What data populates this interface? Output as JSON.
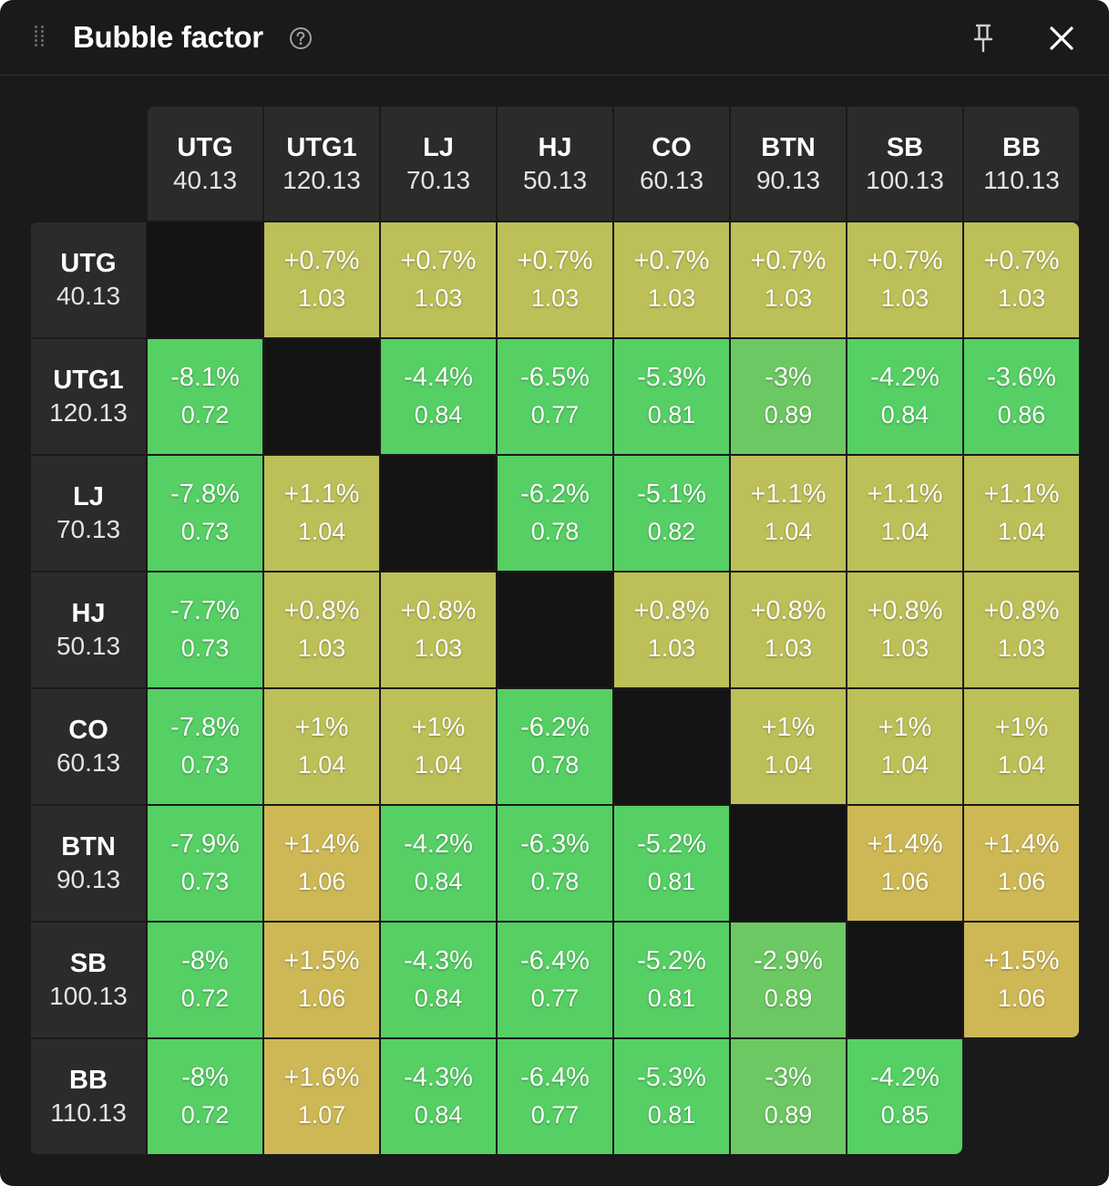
{
  "window": {
    "title": "Bubble factor"
  },
  "icons": {
    "drag": "drag-handle-icon",
    "help": "help-icon",
    "pin": "pin-icon",
    "close": "close-icon"
  },
  "colors": {
    "green": "#56cf64",
    "green_mid": "#6cc862",
    "yellow": "#bdbf58",
    "yellow_dark": "#cdb855",
    "header_bg": "#2b2b2b",
    "panel_bg": "#1a1a1a"
  },
  "players": [
    {
      "pos": "UTG",
      "stack": "40.13"
    },
    {
      "pos": "UTG1",
      "stack": "120.13"
    },
    {
      "pos": "LJ",
      "stack": "70.13"
    },
    {
      "pos": "HJ",
      "stack": "50.13"
    },
    {
      "pos": "CO",
      "stack": "60.13"
    },
    {
      "pos": "BTN",
      "stack": "90.13"
    },
    {
      "pos": "SB",
      "stack": "100.13"
    },
    {
      "pos": "BB",
      "stack": "110.13"
    }
  ],
  "matrix": [
    [
      null,
      {
        "pct": "+0.7%",
        "factor": "1.03",
        "color": "#bdbf58"
      },
      {
        "pct": "+0.7%",
        "factor": "1.03",
        "color": "#bdbf58"
      },
      {
        "pct": "+0.7%",
        "factor": "1.03",
        "color": "#bdbf58"
      },
      {
        "pct": "+0.7%",
        "factor": "1.03",
        "color": "#bdbf58"
      },
      {
        "pct": "+0.7%",
        "factor": "1.03",
        "color": "#bdbf58"
      },
      {
        "pct": "+0.7%",
        "factor": "1.03",
        "color": "#bdbf58"
      },
      {
        "pct": "+0.7%",
        "factor": "1.03",
        "color": "#bdbf58"
      }
    ],
    [
      {
        "pct": "-8.1%",
        "factor": "0.72",
        "color": "#56cf64"
      },
      null,
      {
        "pct": "-4.4%",
        "factor": "0.84",
        "color": "#56cf64"
      },
      {
        "pct": "-6.5%",
        "factor": "0.77",
        "color": "#56cf64"
      },
      {
        "pct": "-5.3%",
        "factor": "0.81",
        "color": "#56cf64"
      },
      {
        "pct": "-3%",
        "factor": "0.89",
        "color": "#6cc862"
      },
      {
        "pct": "-4.2%",
        "factor": "0.84",
        "color": "#56cf64"
      },
      {
        "pct": "-3.6%",
        "factor": "0.86",
        "color": "#56cf64"
      }
    ],
    [
      {
        "pct": "-7.8%",
        "factor": "0.73",
        "color": "#56cf64"
      },
      {
        "pct": "+1.1%",
        "factor": "1.04",
        "color": "#bdbf58"
      },
      null,
      {
        "pct": "-6.2%",
        "factor": "0.78",
        "color": "#56cf64"
      },
      {
        "pct": "-5.1%",
        "factor": "0.82",
        "color": "#56cf64"
      },
      {
        "pct": "+1.1%",
        "factor": "1.04",
        "color": "#bdbf58"
      },
      {
        "pct": "+1.1%",
        "factor": "1.04",
        "color": "#bdbf58"
      },
      {
        "pct": "+1.1%",
        "factor": "1.04",
        "color": "#bdbf58"
      }
    ],
    [
      {
        "pct": "-7.7%",
        "factor": "0.73",
        "color": "#56cf64"
      },
      {
        "pct": "+0.8%",
        "factor": "1.03",
        "color": "#bdbf58"
      },
      {
        "pct": "+0.8%",
        "factor": "1.03",
        "color": "#bdbf58"
      },
      null,
      {
        "pct": "+0.8%",
        "factor": "1.03",
        "color": "#bdbf58"
      },
      {
        "pct": "+0.8%",
        "factor": "1.03",
        "color": "#bdbf58"
      },
      {
        "pct": "+0.8%",
        "factor": "1.03",
        "color": "#bdbf58"
      },
      {
        "pct": "+0.8%",
        "factor": "1.03",
        "color": "#bdbf58"
      }
    ],
    [
      {
        "pct": "-7.8%",
        "factor": "0.73",
        "color": "#56cf64"
      },
      {
        "pct": "+1%",
        "factor": "1.04",
        "color": "#bdbf58"
      },
      {
        "pct": "+1%",
        "factor": "1.04",
        "color": "#bdbf58"
      },
      {
        "pct": "-6.2%",
        "factor": "0.78",
        "color": "#56cf64"
      },
      null,
      {
        "pct": "+1%",
        "factor": "1.04",
        "color": "#bdbf58"
      },
      {
        "pct": "+1%",
        "factor": "1.04",
        "color": "#bdbf58"
      },
      {
        "pct": "+1%",
        "factor": "1.04",
        "color": "#bdbf58"
      }
    ],
    [
      {
        "pct": "-7.9%",
        "factor": "0.73",
        "color": "#56cf64"
      },
      {
        "pct": "+1.4%",
        "factor": "1.06",
        "color": "#cdb855"
      },
      {
        "pct": "-4.2%",
        "factor": "0.84",
        "color": "#56cf64"
      },
      {
        "pct": "-6.3%",
        "factor": "0.78",
        "color": "#56cf64"
      },
      {
        "pct": "-5.2%",
        "factor": "0.81",
        "color": "#56cf64"
      },
      null,
      {
        "pct": "+1.4%",
        "factor": "1.06",
        "color": "#cdb855"
      },
      {
        "pct": "+1.4%",
        "factor": "1.06",
        "color": "#cdb855"
      }
    ],
    [
      {
        "pct": "-8%",
        "factor": "0.72",
        "color": "#56cf64"
      },
      {
        "pct": "+1.5%",
        "factor": "1.06",
        "color": "#cdb855"
      },
      {
        "pct": "-4.3%",
        "factor": "0.84",
        "color": "#56cf64"
      },
      {
        "pct": "-6.4%",
        "factor": "0.77",
        "color": "#56cf64"
      },
      {
        "pct": "-5.2%",
        "factor": "0.81",
        "color": "#56cf64"
      },
      {
        "pct": "-2.9%",
        "factor": "0.89",
        "color": "#6cc862"
      },
      null,
      {
        "pct": "+1.5%",
        "factor": "1.06",
        "color": "#cdb855"
      }
    ],
    [
      {
        "pct": "-8%",
        "factor": "0.72",
        "color": "#56cf64"
      },
      {
        "pct": "+1.6%",
        "factor": "1.07",
        "color": "#cdb855"
      },
      {
        "pct": "-4.3%",
        "factor": "0.84",
        "color": "#56cf64"
      },
      {
        "pct": "-6.4%",
        "factor": "0.77",
        "color": "#56cf64"
      },
      {
        "pct": "-5.3%",
        "factor": "0.81",
        "color": "#56cf64"
      },
      {
        "pct": "-3%",
        "factor": "0.89",
        "color": "#6cc862"
      },
      {
        "pct": "-4.2%",
        "factor": "0.85",
        "color": "#56cf64"
      },
      null
    ]
  ]
}
